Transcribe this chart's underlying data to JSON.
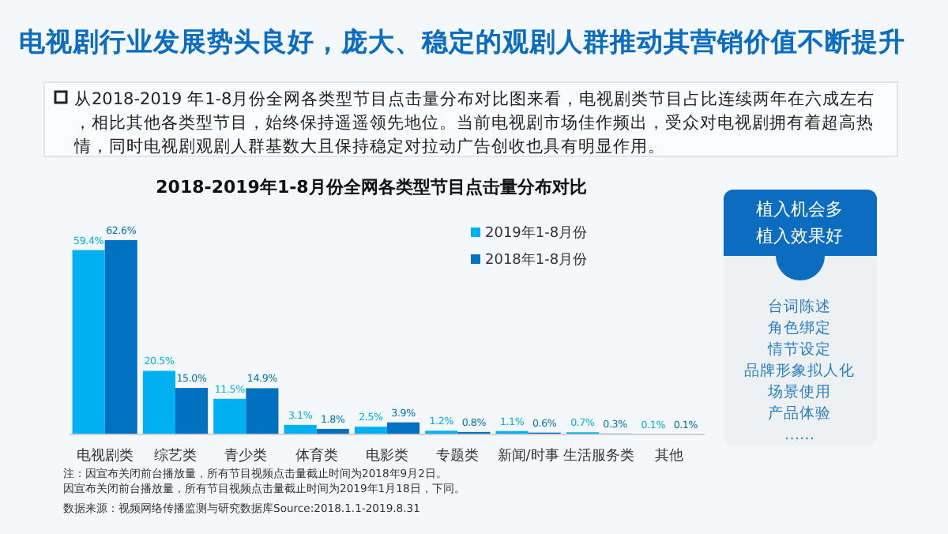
{
  "chart_data": [
    {
      "type": "other",
      "title": "电视剧行业发展势头良好，庞大、稳定的观剧人群推动其营销价值不断提升",
      "annotations": [
        "从2018-2019 年1-8月份全网各类型节目点击量分布对比图来看，电视剧类节目占比连续两年在六成左右，相比其他各类型节目，始终保持遥遥领先地位。当前电视剧市场佳作频出，受众对电视剧拥有着超高热情，同时电视剧观剧人群基数大且保持稳定对拉动广告创收也具有明显作用。"
      ]
    },
    {
      "type": "bar",
      "title": "2018-2019年1-8月份全网各类型节目点击量分布对比",
      "legend": "top right",
      "categories": [
        "电视剧类",
        "综艺类",
        "青少类",
        "体育类",
        "电影类",
        "专题类",
        "新闻/时事",
        "生活服务类",
        "其他"
      ],
      "series": [
        {
          "name": "2019年1-8月份",
          "color": "#00b0f0",
          "values": [
            59.4,
            20.5,
            11.5,
            3.1,
            2.5,
            1.2,
            1.1,
            0.7,
            0.1
          ],
          "value_labels": [
            "59.4%",
            "20.5%",
            "11.5%",
            "3.1%",
            "2.5%",
            "1.2%",
            "1.1%",
            "0.7%",
            "0.1%"
          ]
        },
        {
          "name": "2018年1-8月份",
          "color": "#0070c0",
          "values": [
            62.6,
            15.0,
            14.9,
            1.8,
            3.9,
            0.8,
            0.6,
            0.3,
            0.1
          ],
          "value_labels": [
            "62.6%",
            "15.0%",
            "14.9%",
            "1.8%",
            "3.9%",
            "0.8%",
            "0.6%",
            "0.3%",
            "0.1%"
          ]
        }
      ],
      "annotations": [
        "注：因宣布关闭前台播放量，所有节目视频点击量截止时间为2018年9月2日。",
        "因宣布关闭前台播放量，所有节目视频点击量截止时间为2019年1月18日，下同。",
        "数据来源：视频网络传播监测与研究数据库Source:2018.1.1-2019.8.31"
      ]
    },
    {
      "type": "other",
      "title": "植入机会多",
      "subtitle": "植入效果好",
      "annotations": [
        "台词陈述",
        "角色绑定",
        "情节设定",
        "品牌形象拟人化",
        "场景使用",
        "产品体验",
        "……"
      ]
    }
  ]
}
